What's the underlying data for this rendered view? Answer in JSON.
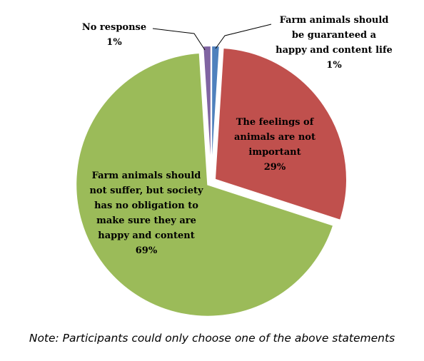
{
  "chart_data": {
    "type": "pie",
    "slices": [
      {
        "label_lines": [
          "Farm animals should",
          "be guaranteed a",
          "happy and content life"
        ],
        "value": 1,
        "value_label": "1%",
        "color": "#4F81BD"
      },
      {
        "label_lines": [
          "The feelings of",
          "animals are not",
          "important"
        ],
        "value": 29,
        "value_label": "29%",
        "color": "#C0504D"
      },
      {
        "label_lines": [
          "Farm animals should",
          "not suffer, but society",
          "has no obligation to",
          "make sure they are",
          "happy and content"
        ],
        "value": 69,
        "value_label": "69%",
        "color": "#9BBB59"
      },
      {
        "label_lines": [
          "No response"
        ],
        "value": 1,
        "value_label": "1%",
        "color": "#8064A2"
      }
    ],
    "start_angle_deg": 0,
    "direction": "clockwise",
    "exploded": true
  },
  "note": "Note: Participants could only choose one of the above statements"
}
